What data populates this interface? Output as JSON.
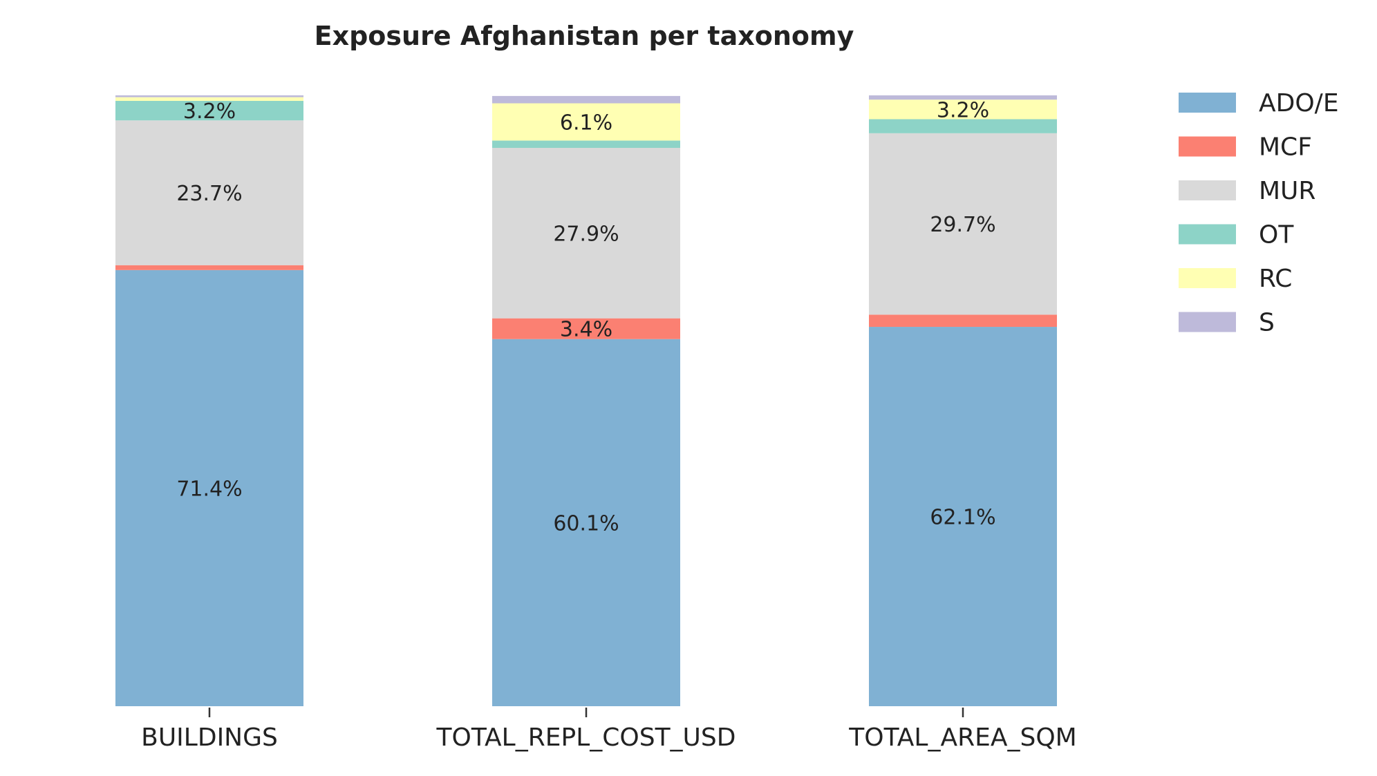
{
  "chart_data": {
    "type": "bar",
    "stacked": true,
    "normalized": true,
    "title": "Exposure Afghanistan per taxonomy",
    "xlabel": "",
    "ylabel": "",
    "ylim": [
      0,
      100
    ],
    "grid": false,
    "legend_position": "right",
    "categories": [
      "BUILDINGS",
      "TOTAL_REPL_COST_USD",
      "TOTAL_AREA_SQM"
    ],
    "series": [
      {
        "name": "ADO/E",
        "color": "#80b1d3",
        "values": [
          71.4,
          60.1,
          62.1
        ],
        "labels": [
          "71.4%",
          "60.1%",
          "62.1%"
        ]
      },
      {
        "name": "MCF",
        "color": "#fb8072",
        "values": [
          0.8,
          3.4,
          2.0
        ],
        "labels": [
          "",
          "3.4%",
          ""
        ]
      },
      {
        "name": "MUR",
        "color": "#d9d9d9",
        "values": [
          23.7,
          27.9,
          29.7
        ],
        "labels": [
          "23.7%",
          "27.9%",
          "29.7%"
        ]
      },
      {
        "name": "OT",
        "color": "#8dd3c7",
        "values": [
          3.2,
          1.2,
          2.3
        ],
        "labels": [
          "3.2%",
          "",
          ""
        ]
      },
      {
        "name": "RC",
        "color": "#ffffb3",
        "values": [
          0.6,
          6.1,
          3.2
        ],
        "labels": [
          "",
          "6.1%",
          "3.2%"
        ]
      },
      {
        "name": "S",
        "color": "#bebada",
        "values": [
          0.3,
          1.2,
          0.7
        ],
        "labels": [
          "",
          "",
          ""
        ]
      }
    ]
  }
}
